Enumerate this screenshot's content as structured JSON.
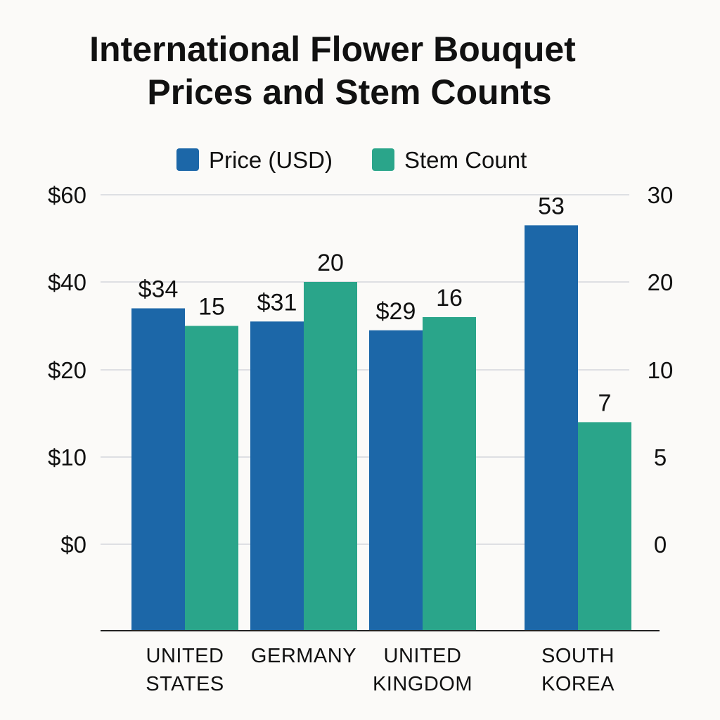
{
  "chart_data": {
    "type": "bar",
    "title_lines": [
      "International Flower Bouquet",
      "Prices and Stem Counts"
    ],
    "categories": [
      [
        "UNITED",
        "STATES"
      ],
      [
        "GERMANY"
      ],
      [
        "UNITED",
        "KINGDOM"
      ],
      [
        "SOUTH",
        "KOREA"
      ]
    ],
    "series": [
      {
        "name": "Price (USD)",
        "axis": "left",
        "color": "#1c67a8",
        "values": [
          34,
          31,
          29,
          53
        ],
        "labels": [
          "$34",
          "$31",
          "$29",
          "53"
        ]
      },
      {
        "name": "Stem Count",
        "axis": "right",
        "color": "#2aa58a",
        "values": [
          15,
          20,
          16,
          7
        ],
        "labels": [
          "15",
          "20",
          "16",
          "7"
        ]
      }
    ],
    "left_axis": {
      "ticks": [
        0,
        10,
        20,
        40,
        60
      ],
      "tick_labels": [
        "$0",
        "$10",
        "$20",
        "$40",
        "$60"
      ]
    },
    "right_axis": {
      "ticks": [
        0,
        5,
        10,
        20,
        30
      ],
      "tick_labels": [
        "0",
        "5",
        "10",
        "20",
        "30"
      ]
    },
    "grid": true,
    "legend_position": "top"
  }
}
